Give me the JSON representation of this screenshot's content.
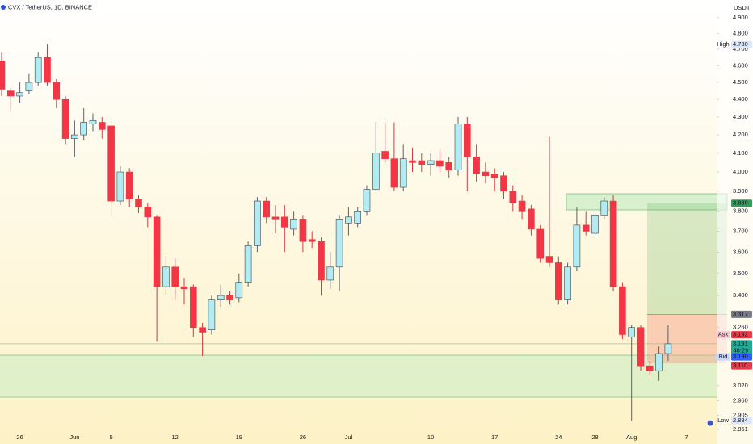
{
  "chart_data": {
    "type": "candlestick",
    "title": "CVX / TetherUS, 1D, BINANCE",
    "currency": "USDT",
    "log_scale": true,
    "grid": false,
    "up_color": "#b2ebf2",
    "down_color": "#f23645",
    "categories": [
      null,
      null,
      "26",
      null,
      null,
      null,
      null,
      null,
      "Jun",
      null,
      null,
      null,
      "5",
      null,
      null,
      null,
      null,
      null,
      null,
      "12",
      null,
      null,
      null,
      null,
      null,
      null,
      "19",
      null,
      null,
      null,
      null,
      null,
      null,
      "26",
      null,
      null,
      null,
      null,
      "Jul",
      null,
      null,
      null,
      null,
      null,
      null,
      null,
      null,
      "10",
      null,
      null,
      null,
      null,
      null,
      null,
      "17",
      null,
      null,
      null,
      null,
      null,
      null,
      "24",
      null,
      null,
      null,
      "28",
      null,
      null,
      null,
      "Aug",
      null,
      null,
      null,
      null,
      null,
      "7",
      null,
      null,
      null
    ],
    "open": [
      4.63,
      4.45,
      4.42,
      4.45,
      4.5,
      4.65,
      4.5,
      4.4,
      4.18,
      4.2,
      4.26,
      4.27,
      4.25,
      3.85,
      4.0,
      3.86,
      3.82,
      3.77,
      3.44,
      3.53,
      3.44,
      3.44,
      3.26,
      3.25,
      3.38,
      3.4,
      3.39,
      3.46,
      3.63,
      3.85,
      3.77,
      3.77,
      3.71,
      3.76,
      3.66,
      3.65,
      3.47,
      3.53,
      3.74,
      3.74,
      3.8,
      3.91,
      4.11,
      4.07,
      3.92,
      4.06,
      4.06,
      4.04,
      4.06,
      4.05,
      4.01,
      4.26,
      4.08,
      4.0,
      3.99,
      3.98,
      3.9,
      3.85,
      3.81,
      3.71,
      3.58,
      3.55,
      3.38,
      3.53,
      3.73,
      3.69,
      3.78,
      3.85,
      3.44,
      3.22,
      3.26,
      3.1,
      3.08,
      3.15,
      null,
      null,
      null,
      null,
      null
    ],
    "high": [
      4.68,
      4.47,
      4.5,
      4.55,
      4.68,
      4.73,
      4.52,
      4.42,
      4.28,
      4.35,
      4.32,
      4.3,
      4.27,
      4.03,
      4.02,
      3.88,
      3.84,
      3.78,
      3.58,
      3.57,
      3.48,
      3.45,
      3.28,
      3.4,
      3.45,
      3.42,
      3.5,
      3.65,
      3.87,
      3.87,
      3.83,
      3.83,
      3.8,
      3.78,
      3.7,
      3.67,
      3.6,
      3.78,
      3.82,
      3.82,
      3.93,
      4.27,
      4.27,
      4.27,
      4.15,
      4.13,
      4.1,
      4.1,
      4.12,
      4.08,
      4.3,
      4.3,
      4.15,
      4.05,
      4.02,
      4.0,
      3.93,
      3.88,
      3.83,
      3.73,
      4.19,
      3.58,
      3.55,
      3.82,
      3.8,
      3.8,
      3.87,
      3.88,
      3.46,
      3.27,
      3.27,
      3.12,
      3.18,
      3.27,
      null,
      null,
      null,
      null,
      null
    ],
    "low": [
      4.42,
      4.33,
      4.38,
      4.43,
      4.48,
      4.48,
      4.35,
      4.15,
      4.08,
      4.17,
      4.22,
      4.18,
      3.78,
      3.83,
      3.82,
      3.79,
      3.72,
      3.2,
      3.4,
      3.38,
      3.36,
      3.22,
      3.14,
      3.23,
      3.35,
      3.36,
      3.37,
      3.44,
      3.6,
      3.74,
      3.69,
      3.6,
      3.68,
      3.6,
      3.62,
      3.4,
      3.43,
      3.42,
      3.68,
      3.72,
      3.78,
      3.9,
      4.05,
      3.9,
      3.9,
      4.0,
      4.0,
      3.98,
      4.0,
      3.97,
      3.98,
      3.9,
      3.95,
      3.94,
      3.9,
      3.86,
      3.8,
      3.76,
      3.68,
      3.55,
      3.53,
      3.36,
      3.36,
      3.51,
      3.68,
      3.67,
      3.76,
      3.42,
      3.21,
      2.884,
      3.08,
      3.06,
      3.04,
      3.12,
      null,
      null,
      null,
      null,
      null
    ],
    "close": [
      4.46,
      4.42,
      4.44,
      4.5,
      4.65,
      4.5,
      4.4,
      4.18,
      4.2,
      4.27,
      4.28,
      4.23,
      3.85,
      4.0,
      3.86,
      3.82,
      3.77,
      3.44,
      3.53,
      3.44,
      3.43,
      3.26,
      3.24,
      3.38,
      3.4,
      3.38,
      3.46,
      3.63,
      3.85,
      3.77,
      3.76,
      3.72,
      3.76,
      3.65,
      3.65,
      3.47,
      3.53,
      3.76,
      3.77,
      3.8,
      3.91,
      4.1,
      4.07,
      3.92,
      4.07,
      4.05,
      4.04,
      4.06,
      4.03,
      4.01,
      4.26,
      4.08,
      3.99,
      3.98,
      3.97,
      3.9,
      3.84,
      3.8,
      3.71,
      3.57,
      3.55,
      3.38,
      3.53,
      3.73,
      3.7,
      3.78,
      3.85,
      3.44,
      3.23,
      3.26,
      3.1,
      3.08,
      3.15,
      3.191,
      null,
      null,
      null,
      null,
      null
    ],
    "ylim": [
      2.842,
      5.015
    ],
    "yticks": [
      {
        "value": 4.9,
        "label": "4.900"
      },
      {
        "value": 4.8,
        "label": "4.800"
      },
      {
        "value": 4.7,
        "label": "4.700"
      },
      {
        "value": 4.6,
        "label": "4.600"
      },
      {
        "value": 4.5,
        "label": "4.500"
      },
      {
        "value": 4.4,
        "label": "4.400"
      },
      {
        "value": 4.3,
        "label": "4.300"
      },
      {
        "value": 4.2,
        "label": "4.200"
      },
      {
        "value": 4.1,
        "label": "4.100"
      },
      {
        "value": 4.0,
        "label": "4.000"
      },
      {
        "value": 3.9,
        "label": "3.900"
      },
      {
        "value": 3.8,
        "label": "3.800"
      },
      {
        "value": 3.7,
        "label": "3.700"
      },
      {
        "value": 3.6,
        "label": "3.600"
      },
      {
        "value": 3.5,
        "label": "3.500"
      },
      {
        "value": 3.4,
        "label": "3.400"
      },
      {
        "value": 3.26,
        "label": "3.260"
      },
      {
        "value": 3.02,
        "label": "3.020"
      },
      {
        "value": 2.96,
        "label": "2.960"
      },
      {
        "value": 2.905,
        "label": "2.905"
      },
      {
        "value": 2.851,
        "label": "2.851"
      }
    ],
    "markers": [
      {
        "name": "High",
        "value": 4.73,
        "label": "4.730",
        "color": "#dbe8fb"
      },
      {
        "value": 3.839,
        "label": "3.839",
        "color": "#2e9e5a"
      },
      {
        "value": 3.317,
        "label": "3.317",
        "color": "#787b86"
      },
      {
        "name": "Ask",
        "value": 3.192,
        "label": "3.192",
        "color": "#f23645"
      },
      {
        "value": 3.191,
        "label": "3.191",
        "countdown": "40:29",
        "color": "#22ab94"
      },
      {
        "name": "Bid",
        "value": 3.19,
        "label": "3.190",
        "color": "#2962ff"
      },
      {
        "value": 3.11,
        "label": "3.110",
        "color": "#f23645"
      },
      {
        "name": "Low",
        "value": 2.884,
        "label": "2.884",
        "color": "#dbe8fb"
      }
    ]
  }
}
